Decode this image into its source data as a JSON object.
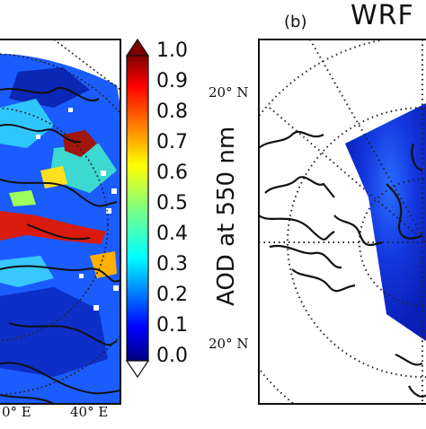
{
  "panel_a": {
    "lon_labels": [
      "0° E",
      "40° E"
    ]
  },
  "panel_b": {
    "label": "(b)",
    "title": "WRF",
    "lat_labels": [
      "20° N",
      "20° N"
    ]
  },
  "colorbar": {
    "title": "AOD at 550 nm",
    "ticks": [
      "1.0",
      "0.9",
      "0.8",
      "0.7",
      "0.6",
      "0.5",
      "0.4",
      "0.3",
      "0.2",
      "0.1",
      "0.0"
    ],
    "colormap": [
      "#00007f",
      "#0000ff",
      "#007fff",
      "#00ffff",
      "#7fff7f",
      "#ffff00",
      "#ff7f00",
      "#ff0000",
      "#7f0000"
    ]
  },
  "chart_data": {
    "type": "heatmap",
    "title": "",
    "colorbar_label": "AOD at 550 nm",
    "value_range": [
      0.0,
      1.0
    ],
    "colorbar_ticks": [
      0.0,
      0.1,
      0.2,
      0.3,
      0.4,
      0.5,
      0.6,
      0.7,
      0.8,
      0.9,
      1.0
    ],
    "extend": "both"
  }
}
